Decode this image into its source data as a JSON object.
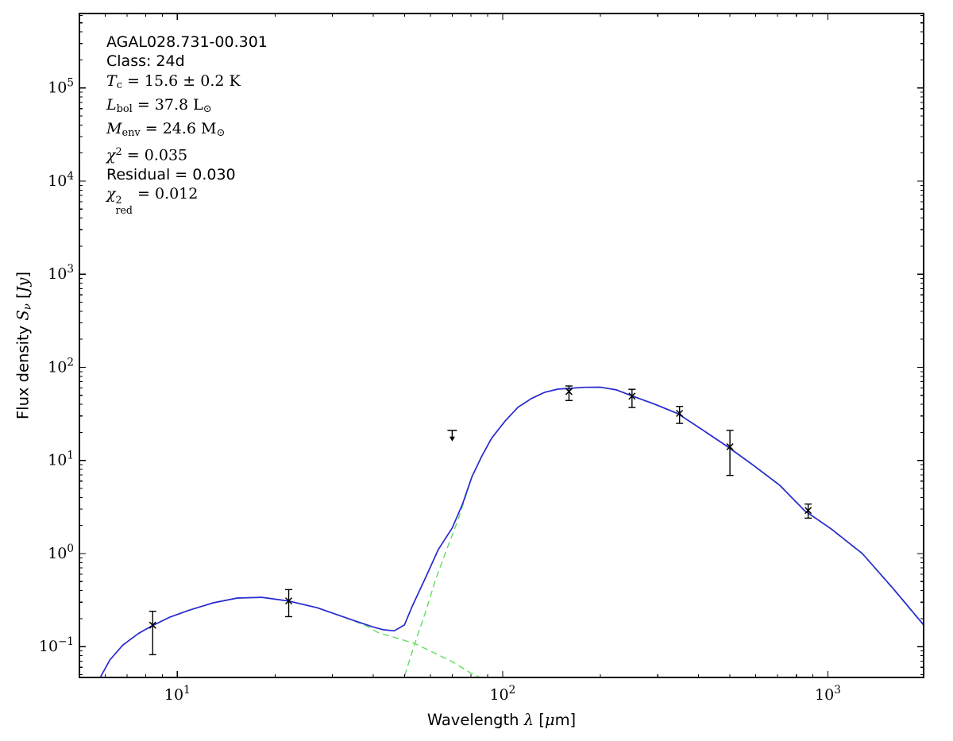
{
  "figure": {
    "background": "#ffffff",
    "frame_color": "#000000",
    "text_color": "#000000"
  },
  "chart_data": {
    "type": "line",
    "title": "",
    "xlabel_segments": [
      [
        "sf",
        "Wavelength "
      ],
      [
        "mi",
        "λ"
      ],
      [
        "sf",
        " ["
      ],
      [
        "mi",
        "μ"
      ],
      [
        "sf",
        "m]"
      ]
    ],
    "ylabel_segments": [
      [
        "sf",
        "Flux density "
      ],
      [
        "mi",
        "S"
      ],
      [
        "misub",
        "ν"
      ],
      [
        "sf",
        " ["
      ],
      [
        "mi",
        "Jy"
      ],
      [
        "sf",
        "]"
      ]
    ],
    "x_axis": {
      "scale": "log",
      "lim": [
        5,
        1970
      ],
      "major_ticks": [
        10,
        100,
        1000
      ]
    },
    "y_axis": {
      "scale": "log",
      "lim": [
        0.0467,
        630000
      ],
      "major_ticks": [
        0.1,
        1,
        10,
        100,
        1000,
        10000,
        100000
      ]
    },
    "grid": false,
    "legend": "none",
    "annotation": {
      "lines": [
        {
          "name": "source-name",
          "segments": [
            [
              "sf",
              "AGAL028.731-00.301"
            ]
          ]
        },
        {
          "name": "class",
          "segments": [
            [
              "sf",
              "Class: 24d"
            ]
          ]
        },
        {
          "name": "temperature",
          "segments": [
            [
              "mi",
              "T"
            ],
            [
              "rmsub",
              "c"
            ],
            [
              "rm",
              " = 15.6 ± 0.2 K"
            ]
          ]
        },
        {
          "name": "luminosity",
          "segments": [
            [
              "mi",
              "L"
            ],
            [
              "rmsub",
              "bol"
            ],
            [
              "rm",
              " = 37.8 L"
            ],
            [
              "rmsub",
              "⊙"
            ]
          ]
        },
        {
          "name": "envelope-mass",
          "segments": [
            [
              "mi",
              "M"
            ],
            [
              "rmsub",
              "env"
            ],
            [
              "rm",
              " = 24.6 M"
            ],
            [
              "rmsub",
              "⊙"
            ]
          ]
        },
        {
          "name": "chi-squared",
          "segments": [
            [
              "mi",
              "χ"
            ],
            [
              "sup",
              "2"
            ],
            [
              "rm",
              " = 0.035"
            ]
          ]
        },
        {
          "name": "residual",
          "segments": [
            [
              "sf",
              "Residual = 0.030"
            ]
          ]
        },
        {
          "name": "chi-squared-reduced",
          "segments": [
            [
              "mi",
              "χ"
            ],
            [
              "stack",
              "2",
              "red"
            ],
            [
              "rm",
              " = 0.012"
            ]
          ]
        }
      ]
    },
    "series": [
      {
        "name": "warm component",
        "color": "#5ede5e",
        "style": "dashed",
        "width": 1.4,
        "points": [
          [
            5.3,
            0.028
          ],
          [
            5.8,
            0.047
          ],
          [
            6.2,
            0.072
          ],
          [
            6.8,
            0.104
          ],
          [
            7.6,
            0.139
          ],
          [
            8.35,
            0.167
          ],
          [
            9.5,
            0.208
          ],
          [
            10.9,
            0.247
          ],
          [
            12.9,
            0.296
          ],
          [
            15.3,
            0.333
          ],
          [
            18.2,
            0.339
          ],
          [
            22.1,
            0.308
          ],
          [
            26.9,
            0.262
          ],
          [
            33.7,
            0.199
          ],
          [
            38,
            0.168
          ],
          [
            41.7,
            0.14
          ],
          [
            47.2,
            0.124
          ],
          [
            53.7,
            0.108
          ],
          [
            61.5,
            0.086
          ],
          [
            70,
            0.069
          ],
          [
            79.9,
            0.052
          ],
          [
            91,
            0.042
          ]
        ]
      },
      {
        "name": "cold component",
        "color": "#5ede5e",
        "style": "dashed",
        "width": 1.4,
        "points": [
          [
            48,
            0.03
          ],
          [
            49.9,
            0.0476
          ],
          [
            53.7,
            0.108
          ],
          [
            58,
            0.238
          ],
          [
            62.2,
            0.523
          ],
          [
            67.3,
            1.1
          ],
          [
            72.9,
            2.28
          ],
          [
            80.5,
            6.65
          ],
          [
            86.2,
            10.95
          ],
          [
            92.5,
            17.25
          ],
          [
            101.9,
            26.55
          ],
          [
            111.5,
            37.1
          ],
          [
            122.6,
            46.1
          ],
          [
            134.8,
            53.9
          ],
          [
            147.6,
            58.2
          ],
          [
            159.9,
            59.3
          ],
          [
            177.5,
            60.8
          ],
          [
            199.6,
            61.1
          ],
          [
            224,
            57.1
          ],
          [
            248,
            49.8
          ],
          [
            293,
            40.2
          ],
          [
            346,
            31.7
          ],
          [
            410,
            21.4
          ],
          [
            494,
            13.85
          ],
          [
            587,
            8.95
          ],
          [
            712,
            5.37
          ],
          [
            848,
            2.87
          ],
          [
            1024,
            1.83
          ],
          [
            1277,
            0.99
          ],
          [
            1595,
            0.41
          ],
          [
            2050,
            0.143
          ]
        ]
      },
      {
        "name": "total fit",
        "color": "#2828d2",
        "style": "solid",
        "width": 1.7,
        "points": [
          [
            5.3,
            0.028
          ],
          [
            5.8,
            0.047
          ],
          [
            6.2,
            0.072
          ],
          [
            6.8,
            0.104
          ],
          [
            7.6,
            0.139
          ],
          [
            8.35,
            0.167
          ],
          [
            9.5,
            0.208
          ],
          [
            10.9,
            0.247
          ],
          [
            12.9,
            0.296
          ],
          [
            15.3,
            0.333
          ],
          [
            18.2,
            0.339
          ],
          [
            22.1,
            0.308
          ],
          [
            26.9,
            0.262
          ],
          [
            33.7,
            0.199
          ],
          [
            39.9,
            0.163
          ],
          [
            43,
            0.152
          ],
          [
            46.4,
            0.148
          ],
          [
            49.9,
            0.171
          ],
          [
            52.8,
            0.273
          ],
          [
            58,
            0.555
          ],
          [
            63.4,
            1.1
          ],
          [
            70,
            1.88
          ],
          [
            75.3,
            3.4
          ],
          [
            80.5,
            6.7
          ],
          [
            86.2,
            11
          ],
          [
            92.5,
            17.3
          ],
          [
            101.9,
            26.6
          ],
          [
            111.5,
            37.2
          ],
          [
            122.6,
            46.2
          ],
          [
            134.8,
            54
          ],
          [
            147.6,
            58.3
          ],
          [
            159.9,
            59.4
          ],
          [
            177.5,
            60.9
          ],
          [
            199.6,
            61.2
          ],
          [
            224,
            57.2
          ],
          [
            248,
            49.9
          ],
          [
            293,
            40.3
          ],
          [
            346,
            31.8
          ],
          [
            410,
            21.5
          ],
          [
            494,
            13.9
          ],
          [
            587,
            9
          ],
          [
            712,
            5.4
          ],
          [
            848,
            2.89
          ],
          [
            1024,
            1.84
          ],
          [
            1277,
            1
          ],
          [
            1595,
            0.414
          ],
          [
            2050,
            0.145
          ]
        ]
      }
    ],
    "data_points": {
      "marker": "x",
      "color": "#000000",
      "values": [
        {
          "wavelength": 8.4,
          "flux": 0.17,
          "upper": 0.24,
          "lower": 0.082
        },
        {
          "wavelength": 22,
          "flux": 0.31,
          "upper": 0.41,
          "lower": 0.21
        },
        {
          "wavelength": 160,
          "flux": 55,
          "upper": 63,
          "lower": 44
        },
        {
          "wavelength": 250,
          "flux": 49,
          "upper": 58,
          "lower": 37
        },
        {
          "wavelength": 350,
          "flux": 32,
          "upper": 38,
          "lower": 25
        },
        {
          "wavelength": 500,
          "flux": 14,
          "upper": 21,
          "lower": 6.9
        },
        {
          "wavelength": 870,
          "flux": 2.9,
          "upper": 3.4,
          "lower": 2.4
        }
      ]
    },
    "upper_limits": [
      {
        "wavelength": 70,
        "flux": 19,
        "cap": 21,
        "tip": 16
      }
    ]
  }
}
